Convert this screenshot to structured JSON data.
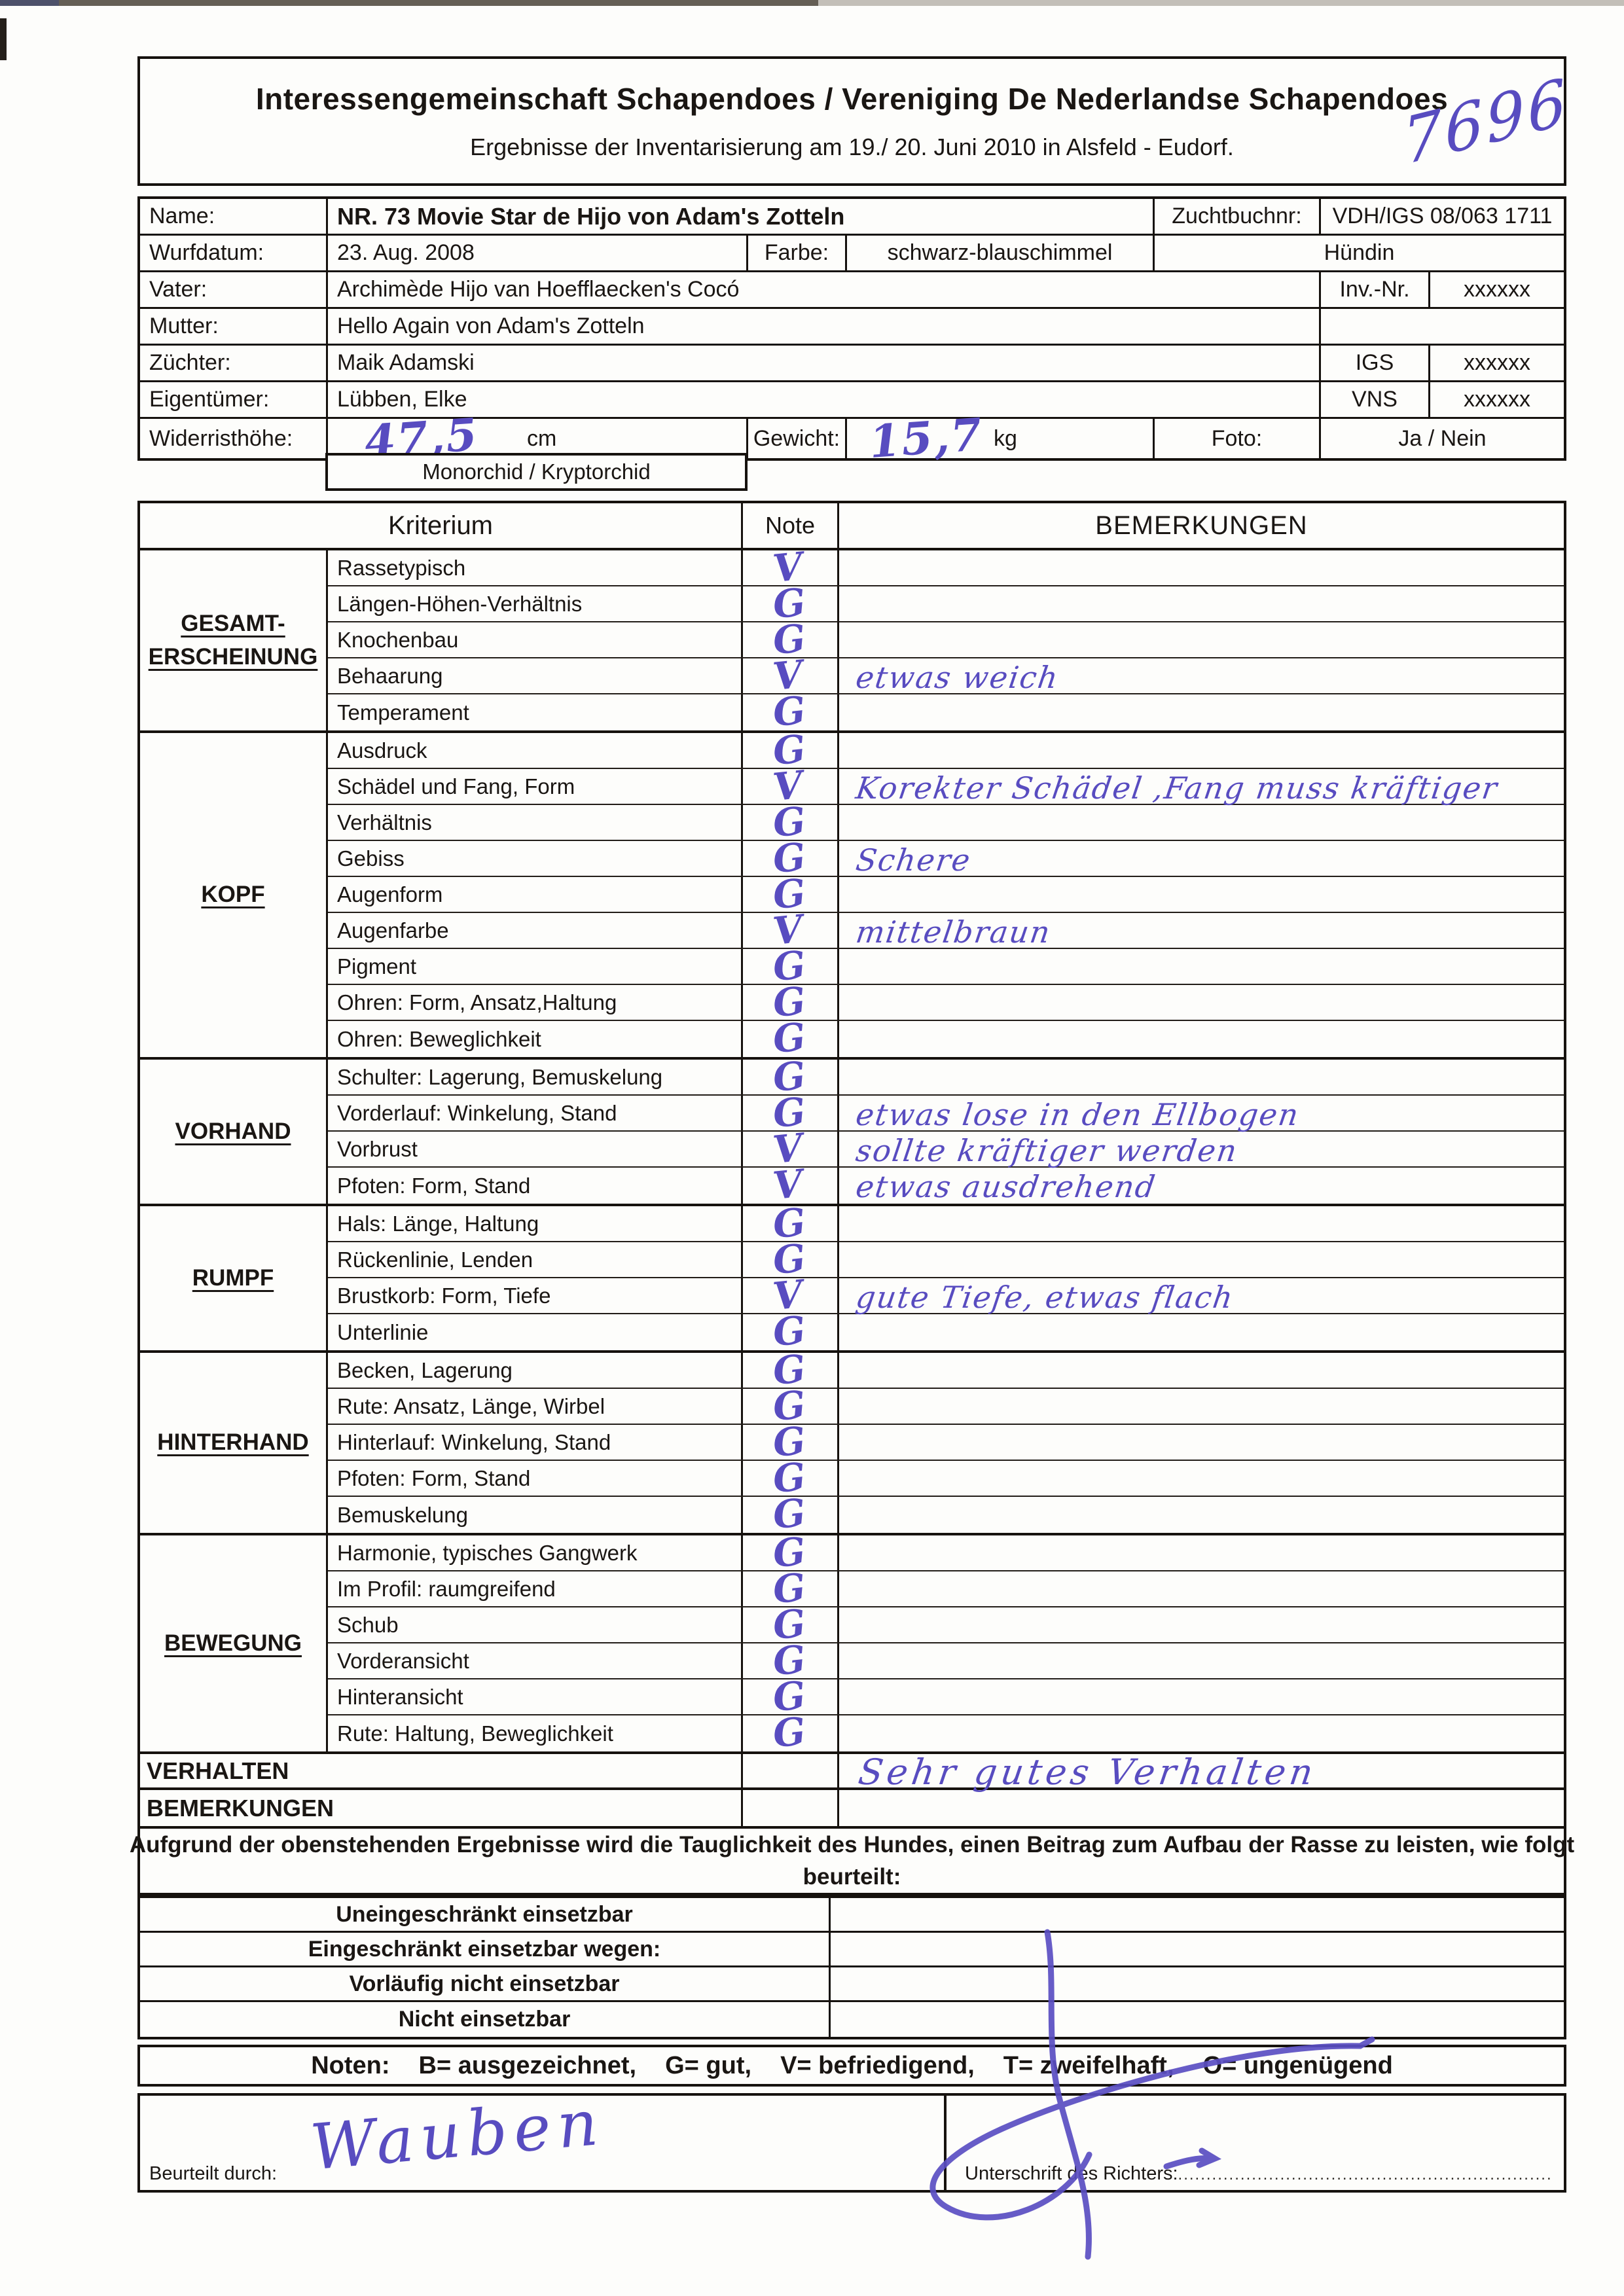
{
  "scan": {
    "handwritten_number": "7696"
  },
  "header": {
    "title": "Interessengemeinschaft Schapendoes / Vereniging De Nederlandse Schapendoes",
    "subtitle": "Ergebnisse der Inventarisierung am 19./ 20. Juni 2010 in Alsfeld - Eudorf."
  },
  "info": {
    "name_label": "Name:",
    "name_value": "NR. 73  Movie Star de Hijo  von Adam's Zotteln",
    "zuchtbuchnr_label": "Zuchtbuchnr:",
    "zuchtbuchnr_value": "VDH/IGS 08/063 1711",
    "wurfdatum_label": "Wurfdatum:",
    "wurfdatum_value": "23. Aug. 2008",
    "farbe_label": "Farbe:",
    "farbe_value": "schwarz-blauschimmel",
    "geschlecht": "Hündin",
    "vater_label": "Vater:",
    "vater_value": "Archimède Hijo van Hoefflaecken's Cocó",
    "invnr_label": "Inv.-Nr.",
    "invnr_value": "xxxxxx",
    "mutter_label": "Mutter:",
    "mutter_value": "Hello Again von Adam's Zotteln",
    "zuechter_label": "Züchter:",
    "zuechter_value": "Maik Adamski",
    "igs_label": "IGS",
    "igs_value": "xxxxxx",
    "eigentuemer_label": "Eigentümer:",
    "eigentuemer_value": "Lübben, Elke",
    "vns_label": "VNS",
    "vns_value": "xxxxxx",
    "widerristhoehe_label": "Widerristhöhe:",
    "widerristhoehe_value": "47,5",
    "cm_label": "cm",
    "gewicht_label": "Gewicht:",
    "gewicht_value": "15,7",
    "kg_label": "kg",
    "foto_label": "Foto:",
    "foto_value": "Ja / Nein",
    "monorchid": "Monorchid  /  Kryptorchid"
  },
  "criteria": {
    "headers": {
      "kriterium": "Kriterium",
      "note": "Note",
      "bemerkungen": "BEMERKUNGEN"
    },
    "sections": [
      {
        "category_lines": [
          "GESAMT-",
          "ERSCHEINUNG"
        ],
        "rows": [
          {
            "label": "Rassetypisch",
            "note": "V",
            "remark": ""
          },
          {
            "label": "Längen-Höhen-Verhältnis",
            "note": "G",
            "remark": ""
          },
          {
            "label": "Knochenbau",
            "note": "G",
            "remark": ""
          },
          {
            "label": "Behaarung",
            "note": "V",
            "remark": "etwas weich"
          },
          {
            "label": "Temperament",
            "note": "G",
            "remark": ""
          }
        ]
      },
      {
        "category_lines": [
          "KOPF"
        ],
        "rows": [
          {
            "label": "Ausdruck",
            "note": "G",
            "remark": ""
          },
          {
            "label": "Schädel und Fang, Form",
            "note": "V",
            "remark": "Korekter Schädel ,Fang muss kräftiger"
          },
          {
            "label": "Verhältnis",
            "note": "G",
            "remark": ""
          },
          {
            "label": "Gebiss",
            "note": "G",
            "remark": "Schere"
          },
          {
            "label": "Augenform",
            "note": "G",
            "remark": ""
          },
          {
            "label": "Augenfarbe",
            "note": "V",
            "remark": "mittelbraun"
          },
          {
            "label": "Pigment",
            "note": "G",
            "remark": ""
          },
          {
            "label": "Ohren: Form, Ansatz,Haltung",
            "note": "G",
            "remark": ""
          },
          {
            "label": "Ohren: Beweglichkeit",
            "note": "G",
            "remark": ""
          }
        ]
      },
      {
        "category_lines": [
          "VORHAND"
        ],
        "rows": [
          {
            "label": "Schulter: Lagerung, Bemuskelung",
            "note": "G",
            "remark": ""
          },
          {
            "label": "Vorderlauf: Winkelung, Stand",
            "note": "G",
            "remark": "etwas lose in den Ellbogen"
          },
          {
            "label": "Vorbrust",
            "note": "V",
            "remark": "sollte kräftiger werden"
          },
          {
            "label": "Pfoten: Form, Stand",
            "note": "V",
            "remark": "etwas ausdrehend"
          }
        ]
      },
      {
        "category_lines": [
          "RUMPF"
        ],
        "rows": [
          {
            "label": "Hals: Länge, Haltung",
            "note": "G",
            "remark": ""
          },
          {
            "label": "Rückenlinie, Lenden",
            "note": "G",
            "remark": ""
          },
          {
            "label": "Brustkorb: Form, Tiefe",
            "note": "V",
            "remark": "gute Tiefe, etwas flach"
          },
          {
            "label": "Unterlinie",
            "note": "G",
            "remark": ""
          }
        ]
      },
      {
        "category_lines": [
          "HINTERHAND"
        ],
        "rows": [
          {
            "label": "Becken, Lagerung",
            "note": "G",
            "remark": ""
          },
          {
            "label": "Rute: Ansatz, Länge, Wirbel",
            "note": "G",
            "remark": ""
          },
          {
            "label": "Hinterlauf: Winkelung, Stand",
            "note": "G",
            "remark": ""
          },
          {
            "label": "Pfoten: Form, Stand",
            "note": "G",
            "remark": ""
          },
          {
            "label": "Bemuskelung",
            "note": "G",
            "remark": ""
          }
        ]
      },
      {
        "category_lines": [
          "BEWEGUNG"
        ],
        "rows": [
          {
            "label": "Harmonie, typisches Gangwerk",
            "note": "G",
            "remark": ""
          },
          {
            "label": "Im Profil: raumgreifend",
            "note": "G",
            "remark": ""
          },
          {
            "label": "Schub",
            "note": "G",
            "remark": ""
          },
          {
            "label": "Vorderansicht",
            "note": "G",
            "remark": ""
          },
          {
            "label": "Hinteransicht",
            "note": "G",
            "remark": ""
          },
          {
            "label": "Rute: Haltung, Beweglichkeit",
            "note": "G",
            "remark": ""
          }
        ]
      }
    ],
    "verhalten_label": "VERHALTEN",
    "verhalten_remark": "Sehr gutes Verhalten",
    "bemerkungen_label": "BEMERKUNGEN"
  },
  "assessment": {
    "intro_line1": "Aufgrund der obenstehenden Ergebnisse wird die Tauglichkeit des Hundes, einen Beitrag zum Aufbau der Rasse zu leisten, wie folgt",
    "intro_line2": "beurteilt:",
    "options": [
      "Uneingeschränkt einsetzbar",
      "Eingeschränkt einsetzbar wegen:",
      "Vorläufig nicht einsetzbar",
      "Nicht einsetzbar"
    ]
  },
  "legend": {
    "parts": [
      "Noten:",
      "B= ausgezeichnet,",
      "G= gut,",
      "V= befriedigend,",
      "T= zweifelhaft,",
      "O= ungenügend"
    ]
  },
  "footer": {
    "beurteilt_durch_label": "Beurteilt durch:",
    "beurteilt_durch_signature": "Wauben",
    "unterschrift_label": "Unterschrift des Richters:",
    "dots": "..................................................................................................."
  }
}
